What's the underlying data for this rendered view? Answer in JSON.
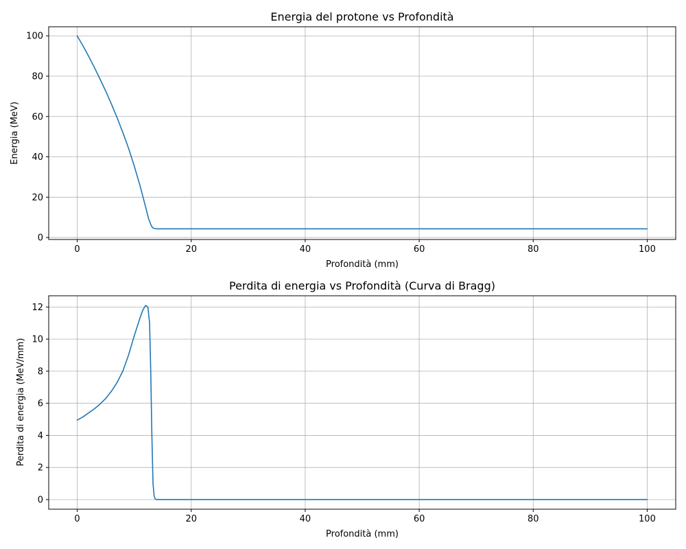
{
  "colors": {
    "series": "#1f77b4",
    "grid": "#b0b0b0",
    "background": "#ffffff"
  },
  "chart_data": [
    {
      "type": "line",
      "title": "Energia del protone vs Profondità",
      "xlabel": "Profondità (mm)",
      "ylabel": "Energia (MeV)",
      "xlim": [
        -5,
        105
      ],
      "ylim": [
        -1,
        104.5
      ],
      "xticks": [
        0,
        20,
        40,
        60,
        80,
        100
      ],
      "yticks": [
        0,
        20,
        40,
        60,
        80,
        100
      ],
      "grid": true,
      "series": [
        {
          "x": [
            0,
            1,
            2,
            3,
            4,
            5,
            6,
            7,
            8,
            9,
            10,
            11,
            12,
            12.5,
            13,
            13.3,
            13.6,
            14,
            15,
            20,
            40,
            60,
            80,
            100
          ],
          "y": [
            100,
            95.1,
            89.9,
            84.4,
            78.6,
            72.6,
            66.2,
            59.4,
            52.1,
            44.3,
            35.5,
            25.9,
            15.2,
            9.5,
            5.8,
            4.7,
            4.4,
            4.3,
            4.3,
            4.3,
            4.3,
            4.3,
            4.3,
            4.3
          ]
        }
      ]
    },
    {
      "type": "line",
      "title": "Perdita di energia vs Profondità (Curva di Bragg)",
      "xlabel": "Profondità (mm)",
      "ylabel": "Perdita di energia (MeV/mm)",
      "xlim": [
        -5,
        105
      ],
      "ylim": [
        -0.6,
        12.7
      ],
      "xticks": [
        0,
        20,
        40,
        60,
        80,
        100
      ],
      "yticks": [
        0,
        2,
        4,
        6,
        8,
        10,
        12
      ],
      "grid": true,
      "series": [
        {
          "x": [
            0,
            1,
            2,
            3,
            4,
            5,
            6,
            7,
            8,
            9,
            10,
            11,
            11.5,
            12,
            12.4,
            12.7,
            12.9,
            13.1,
            13.3,
            13.5,
            13.7,
            14,
            15,
            20,
            40,
            60,
            80,
            100
          ],
          "y": [
            4.95,
            5.15,
            5.4,
            5.65,
            5.95,
            6.3,
            6.75,
            7.3,
            8.0,
            9.0,
            10.2,
            11.3,
            11.8,
            12.1,
            12.0,
            11.0,
            8.0,
            4.0,
            1.0,
            0.2,
            0.03,
            0.0,
            0.0,
            0.0,
            0.0,
            0.0,
            0.0,
            0.0
          ]
        }
      ]
    }
  ]
}
